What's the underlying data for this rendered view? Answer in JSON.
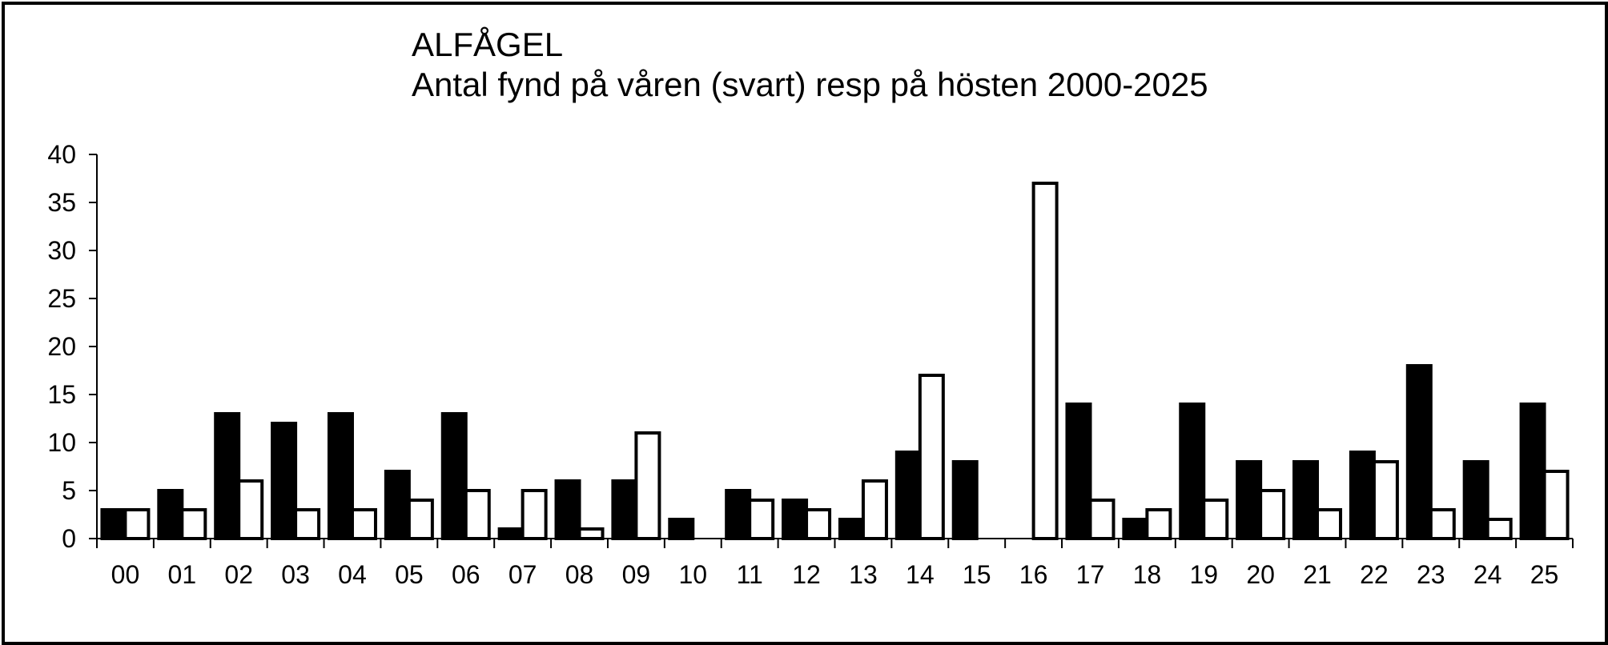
{
  "chart_data": {
    "type": "bar",
    "title": "ALFÅGEL",
    "subtitle": "Antal fynd på våren (svart) resp på hösten 2000-2025",
    "xlabel": "",
    "ylabel": "",
    "ylim": [
      0,
      40
    ],
    "yticks": [
      "0",
      "5",
      "10",
      "15",
      "20",
      "25",
      "30",
      "35",
      "40"
    ],
    "grid": false,
    "categories": [
      "00",
      "01",
      "02",
      "03",
      "04",
      "05",
      "06",
      "07",
      "08",
      "09",
      "10",
      "11",
      "12",
      "13",
      "14",
      "15",
      "16",
      "17",
      "18",
      "19",
      "20",
      "21",
      "22",
      "23",
      "24",
      "25"
    ],
    "series": [
      {
        "key": "spring",
        "color": "#000000",
        "values": [
          3,
          5,
          13,
          12,
          13,
          7,
          13,
          1,
          6,
          6,
          2,
          5,
          4,
          2,
          9,
          8,
          0,
          14,
          2,
          14,
          8,
          8,
          9,
          18,
          8,
          14
        ]
      },
      {
        "key": "autumn",
        "color": "#ffffff",
        "values": [
          3,
          3,
          6,
          3,
          3,
          4,
          5,
          5,
          1,
          11,
          0,
          4,
          3,
          6,
          17,
          0,
          37,
          4,
          3,
          4,
          5,
          3,
          8,
          3,
          2,
          7
        ]
      }
    ]
  }
}
